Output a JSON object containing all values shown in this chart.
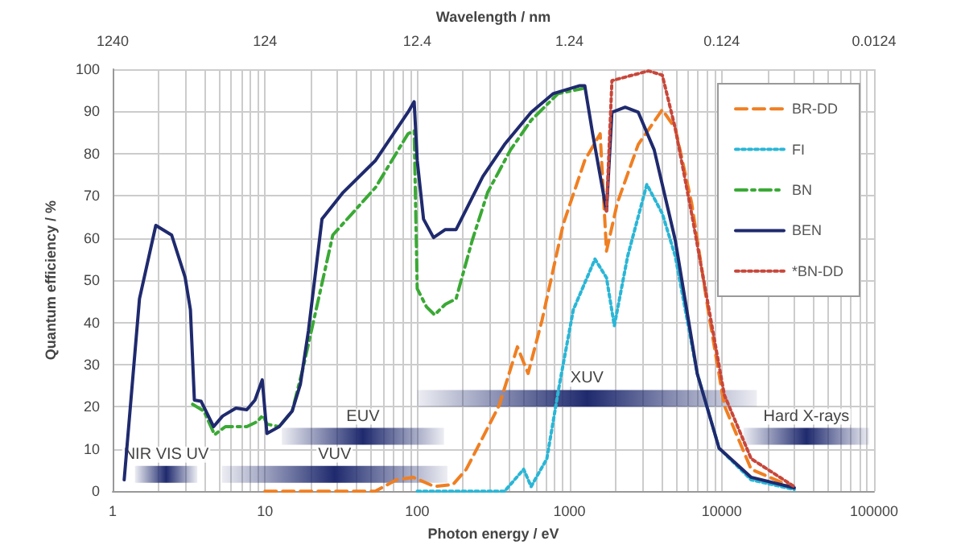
{
  "chart_data": {
    "type": "line",
    "xlabel": "Photon energy / eV",
    "ylabel": "Quantum efficiency / %",
    "x2label": "Wavelength / nm",
    "log": "x",
    "xlim": [
      1,
      100000
    ],
    "xticks": [
      1,
      10,
      100,
      1000,
      10000,
      100000
    ],
    "annotations": [
      "1240",
      "124",
      "12.4",
      "1.24",
      "0.124",
      "0.0124"
    ],
    "ylim": [
      0,
      100
    ],
    "yticks": [
      0,
      10,
      20,
      30,
      40,
      50,
      60,
      70,
      80,
      90,
      100
    ],
    "grid": true,
    "legend": "top right",
    "series": [
      {
        "name": "BR-DD",
        "color": "#f07f22",
        "line_style": "dashed",
        "x": [
          10,
          53,
          73,
          94,
          130,
          172,
          210,
          270,
          345,
          455,
          535,
          660,
          910,
          1260,
          1590,
          1750,
          2060,
          2830,
          4070,
          4950,
          6340,
          8130,
          10400,
          15600,
          29900
        ],
        "values": [
          0,
          0,
          2.7,
          3.3,
          1.1,
          1.6,
          5.2,
          12.8,
          20.3,
          34.2,
          27.9,
          40.5,
          63.3,
          78.4,
          84.7,
          56.9,
          68.3,
          82.2,
          90.4,
          86,
          68.3,
          43,
          20.3,
          5.2,
          0.8
        ]
      },
      {
        "name": "FI",
        "color": "#2ab6d6",
        "line_style": "dotted",
        "x": [
          100,
          270,
          375,
          500,
          560,
          710,
          860,
          1060,
          1470,
          1750,
          1970,
          2410,
          3220,
          4070,
          4950,
          6900,
          9600,
          15600,
          29900
        ],
        "values": [
          0,
          0,
          0,
          5.2,
          1.1,
          7.7,
          25.4,
          43,
          55,
          50.6,
          39.2,
          55.7,
          72.7,
          65.8,
          55.7,
          27.9,
          10.2,
          2.7,
          0.4
        ]
      },
      {
        "name": "BN",
        "color": "#3aa935",
        "line_style": "dashdot",
        "x": [
          3.35,
          3.97,
          4.67,
          5.5,
          7.6,
          8.9,
          9.7,
          10.3,
          12.4,
          15.1,
          17.8,
          27.9,
          53.3,
          87,
          95.5,
          100,
          115,
          130,
          153,
          180,
          230,
          290,
          410,
          560,
          840,
          1220
        ],
        "values": [
          20.6,
          19,
          13.4,
          15.3,
          15.3,
          16.5,
          18,
          15.9,
          15.3,
          19,
          29.2,
          60.7,
          72,
          84.7,
          85.4,
          48,
          43.7,
          41.8,
          44.3,
          45.6,
          59.5,
          70.8,
          80.9,
          87.9,
          94.2,
          95.4
        ]
      },
      {
        "name": "BEN",
        "color": "#1f2a6e",
        "line_style": "solid",
        "x": [
          1.19,
          1.5,
          1.92,
          2.44,
          2.99,
          3.24,
          3.44,
          3.81,
          4.6,
          5.27,
          6.45,
          7.6,
          8.6,
          9.6,
          10.3,
          12.4,
          15.1,
          17.1,
          19.3,
          23.7,
          32.6,
          53.3,
          87,
          95.5,
          100,
          110,
          128,
          153,
          180,
          195,
          270,
          375,
          560,
          780,
          1170,
          1260,
          1420,
          1750,
          1900,
          2320,
          2830,
          3600,
          4950,
          6900,
          9600,
          15600,
          29900
        ],
        "values": [
          2.7,
          45.6,
          63,
          60.7,
          50.7,
          43,
          21.6,
          21.3,
          15.3,
          17.8,
          19.7,
          19.3,
          21.6,
          26.4,
          13.7,
          15.3,
          19,
          25.4,
          38,
          64.5,
          70.8,
          78.4,
          89.8,
          92.3,
          78.4,
          64.5,
          60.1,
          62,
          62,
          64.5,
          74.6,
          82.2,
          89.8,
          94.2,
          96.1,
          96.1,
          84.7,
          66.4,
          89.8,
          91,
          89.8,
          80.9,
          59.5,
          27.9,
          10.2,
          3.3,
          0.8
        ]
      },
      {
        "name": "*BN-DD",
        "color": "#c8473a",
        "line_style": "dotted",
        "x": [
          1750,
          1900,
          3300,
          4070,
          4950,
          6340,
          8130,
          10400,
          15600,
          29900
        ],
        "values": [
          66.4,
          97.3,
          99.6,
          98.6,
          86,
          65.8,
          44.3,
          22.8,
          7.7,
          1.1
        ]
      }
    ],
    "bands": [
      {
        "axis": "x",
        "from": 1.4,
        "to": 3.6,
        "label": "NIR VIS UV",
        "color": "#1f2a6e"
      },
      {
        "axis": "x",
        "from": 5.2,
        "to": 158,
        "label": "VUV",
        "color": "#1f2a6e"
      },
      {
        "axis": "x",
        "from": 12.9,
        "to": 150,
        "label": "EUV",
        "color": "#1f2a6e"
      },
      {
        "axis": "x",
        "from": 100,
        "to": 17000,
        "label": "XUV",
        "color": "#1f2a6e"
      },
      {
        "axis": "x",
        "from": 13900,
        "to": 93000,
        "label": "Hard X-rays",
        "color": "#1f2a6e"
      }
    ]
  }
}
